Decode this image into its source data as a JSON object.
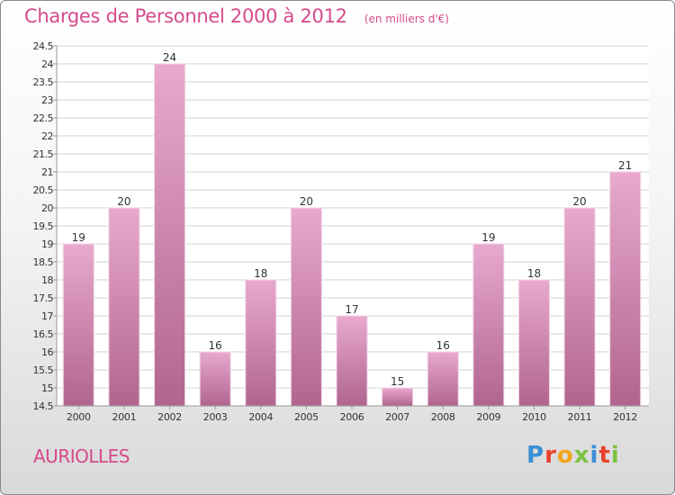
{
  "header": {
    "title": "Charges de Personnel 2000 à 2012",
    "unit": "(en milliers d'€)"
  },
  "footer": {
    "commune": "AURIOLLES",
    "brand": "Proxiti"
  },
  "colors": {
    "accent": "#d54a8c",
    "bar_top": "#e8a9cf",
    "bar_bottom": "#b0658f",
    "grid": "#d3d3d3",
    "brand_letters": [
      "#3a8fd6",
      "#e8412b",
      "#f2a51a",
      "#7cc242",
      "#3a8fd6",
      "#e8412b",
      "#7cc242"
    ]
  },
  "chart_data": {
    "type": "bar",
    "categories": [
      "2000",
      "2001",
      "2002",
      "2003",
      "2004",
      "2005",
      "2006",
      "2007",
      "2008",
      "2009",
      "2010",
      "2011",
      "2012"
    ],
    "values": [
      19,
      20,
      24,
      16,
      18,
      20,
      17,
      15,
      16,
      19,
      18,
      20,
      21
    ],
    "ylim": [
      14.5,
      24.5
    ],
    "yticks": [
      "14.5",
      "15",
      "15.5",
      "16",
      "16.5",
      "17",
      "17.5",
      "18",
      "18.5",
      "19",
      "19.5",
      "20",
      "20.5",
      "21",
      "21.5",
      "22",
      "22.5",
      "23",
      "23.5",
      "24",
      "24.5"
    ],
    "grid": true,
    "xlabel": "",
    "ylabel": ""
  }
}
